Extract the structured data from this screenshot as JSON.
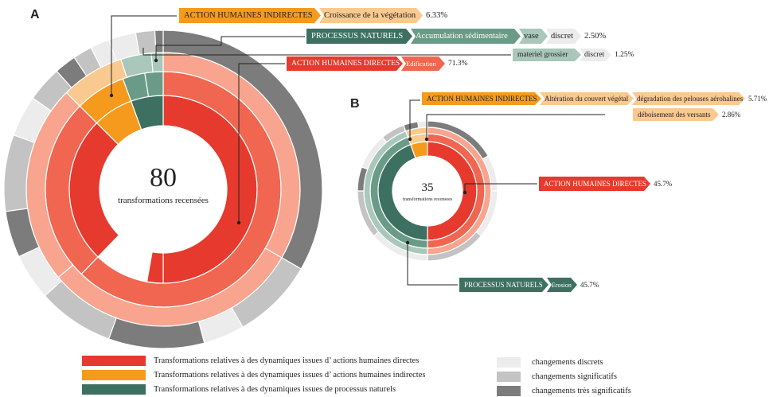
{
  "panel_a": {
    "letter": "A",
    "center_value": "80",
    "center_label": "transformations recensées",
    "tags": {
      "indirect": {
        "parts": [
          "ACTION HUMAINES INDIRECTES",
          "Croissance de la végétation"
        ],
        "pct": "6.33%"
      },
      "naturel": {
        "parts": [
          "PROCESSUS NATURELS",
          "Accumulation sédimentaire",
          "vase",
          "discret"
        ],
        "pct": "2.50%"
      },
      "naturel2": {
        "parts": [
          "materiel grossier",
          "discret"
        ],
        "pct": "1.25%"
      },
      "direct": {
        "parts": [
          "ACTION HUMAINES DIRECTES",
          "Edification"
        ],
        "pct": "71.3%"
      }
    }
  },
  "panel_b": {
    "letter": "B",
    "center_value": "35",
    "center_label": "transformations recensees",
    "tags": {
      "indirect": {
        "parts": [
          "ACTION HUMAINES INDIRECTES",
          "Altération du couvert végétal",
          "dégradation des pelouses aérohalines"
        ],
        "pct": "5.71%"
      },
      "indirect2": {
        "parts": [
          "déboisement des versants"
        ],
        "pct": "2.86%"
      },
      "direct": {
        "parts": [
          "ACTION HUMAINES DIRECTES"
        ],
        "pct": "45.7%"
      },
      "naturel": {
        "parts": [
          "PROCESSUS NATURELS",
          "Erosion"
        ],
        "pct": "45.7%"
      }
    }
  },
  "legend": {
    "categories": [
      {
        "label": "Transformations relatives à des dynamiques issues d’ actions humaines directes",
        "color": "#e63a2e"
      },
      {
        "label": "Transformations relatives à des dynamiques issues d’ actions humaines indirectes",
        "color": "#f59a1d"
      },
      {
        "label": "Transformations relatives à des dynamiques issues de processus naturels",
        "color": "#3d7060"
      }
    ],
    "intensity": [
      {
        "label": "changements discrets",
        "color": "#ececec"
      },
      {
        "label": "changements  significatifs",
        "color": "#c3c3c3"
      },
      {
        "label": "changements  très significatifs",
        "color": "#7c7c7c"
      }
    ]
  },
  "colors": {
    "direct": "#e63a2e",
    "direct_mid": "#f06650",
    "direct_light": "#f8a48f",
    "indirect": "#f59a1d",
    "indirect_light": "#f9c98f",
    "naturel": "#3d7060",
    "naturel_mid": "#6a9b88",
    "naturel_light": "#a9c7ba",
    "gray_light": "#ececec",
    "gray_mid": "#c3c3c3",
    "gray_dark": "#7c7c7c"
  }
}
